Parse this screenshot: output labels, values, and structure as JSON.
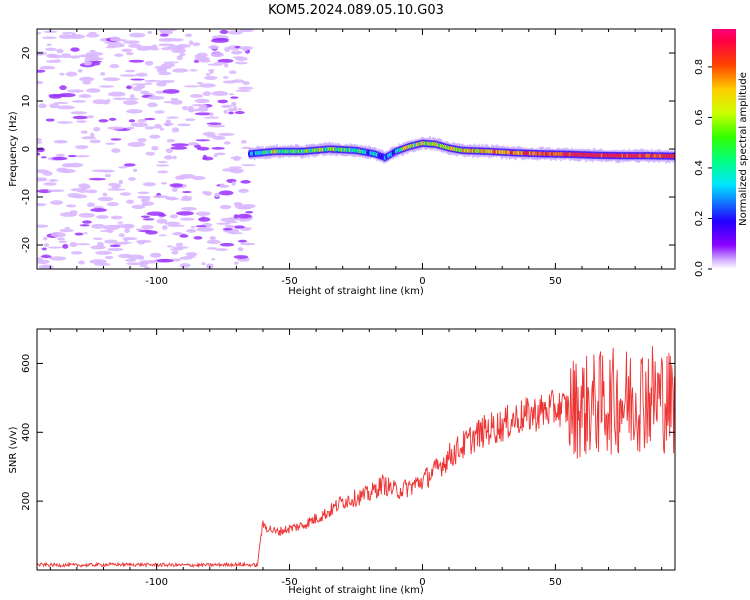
{
  "figure": {
    "title": "KOM5.2024.089.05.10.G03"
  },
  "chart_data": [
    {
      "type": "heatmap",
      "panel": "spectrogram",
      "xlabel": "Height of straight line (km)",
      "ylabel": "Frequency (Hz)",
      "xlim": [
        -145,
        95
      ],
      "ylim": [
        -25,
        25
      ],
      "x_ticks": [
        -100,
        -50,
        0,
        50
      ],
      "x_tick_labels": [
        "-100",
        "-50",
        "0",
        "50"
      ],
      "y_ticks": [
        -20,
        -10,
        0,
        10,
        20
      ],
      "y_tick_labels": [
        "-20",
        "-10",
        "0",
        "10",
        "20"
      ],
      "grid": false,
      "noise_region_x": [
        -145,
        -65
      ],
      "signal_track": {
        "x": [
          -65,
          -55,
          -45,
          -35,
          -25,
          -18,
          -14,
          -10,
          -5,
          0,
          5,
          10,
          15,
          25,
          35,
          45,
          55,
          65,
          75,
          85,
          95
        ],
        "frequency": [
          -1.0,
          -0.5,
          -0.5,
          0.0,
          -0.3,
          -1.0,
          -1.8,
          -0.5,
          0.5,
          1.2,
          1.0,
          0.2,
          -0.3,
          -0.5,
          -0.8,
          -1.0,
          -1.1,
          -1.3,
          -1.4,
          -1.4,
          -1.5
        ],
        "amplitude": [
          0.25,
          0.55,
          0.45,
          0.5,
          0.45,
          0.35,
          0.3,
          0.4,
          0.55,
          0.6,
          0.6,
          0.55,
          0.6,
          0.7,
          0.75,
          0.8,
          0.85,
          0.9,
          0.9,
          0.85,
          0.9
        ]
      },
      "colorbar": {
        "label": "Normalized spectral amplitude",
        "range": [
          0,
          0.95
        ],
        "ticks": [
          0.0,
          0.2,
          0.4,
          0.6,
          0.8
        ],
        "tick_labels": [
          "0.0",
          "0.2",
          "0.4",
          "0.6",
          "0.8"
        ],
        "colormap": "gist_rainbow"
      }
    },
    {
      "type": "line",
      "panel": "snr",
      "xlabel": "Height of straight line (km)",
      "ylabel": "SNR (v/v)",
      "xlim": [
        -145,
        95
      ],
      "ylim": [
        0,
        700
      ],
      "x_ticks": [
        -100,
        -50,
        0,
        50
      ],
      "x_tick_labels": [
        "-100",
        "-50",
        "0",
        "50"
      ],
      "y_ticks": [
        200,
        400,
        600
      ],
      "y_tick_labels": [
        "200",
        "400",
        "600"
      ],
      "grid": false,
      "color": "#ee3333",
      "series": [
        {
          "x": [
            -145,
            -130,
            -115,
            -100,
            -85,
            -70,
            -62,
            -61,
            -60,
            -55,
            -50,
            -45,
            -40,
            -35,
            -30,
            -25,
            -20,
            -15,
            -10,
            -5,
            0,
            5,
            10,
            15,
            20,
            25,
            30,
            35,
            40,
            45,
            50,
            55,
            60,
            65,
            70,
            75,
            80,
            85,
            90,
            95
          ],
          "y": [
            15,
            14,
            16,
            15,
            14,
            16,
            14,
            90,
            130,
            110,
            120,
            130,
            150,
            170,
            200,
            210,
            220,
            250,
            230,
            240,
            260,
            290,
            330,
            360,
            390,
            410,
            420,
            440,
            450,
            460,
            470,
            470,
            475,
            480,
            490,
            490,
            500,
            510,
            500,
            480
          ]
        }
      ]
    }
  ]
}
